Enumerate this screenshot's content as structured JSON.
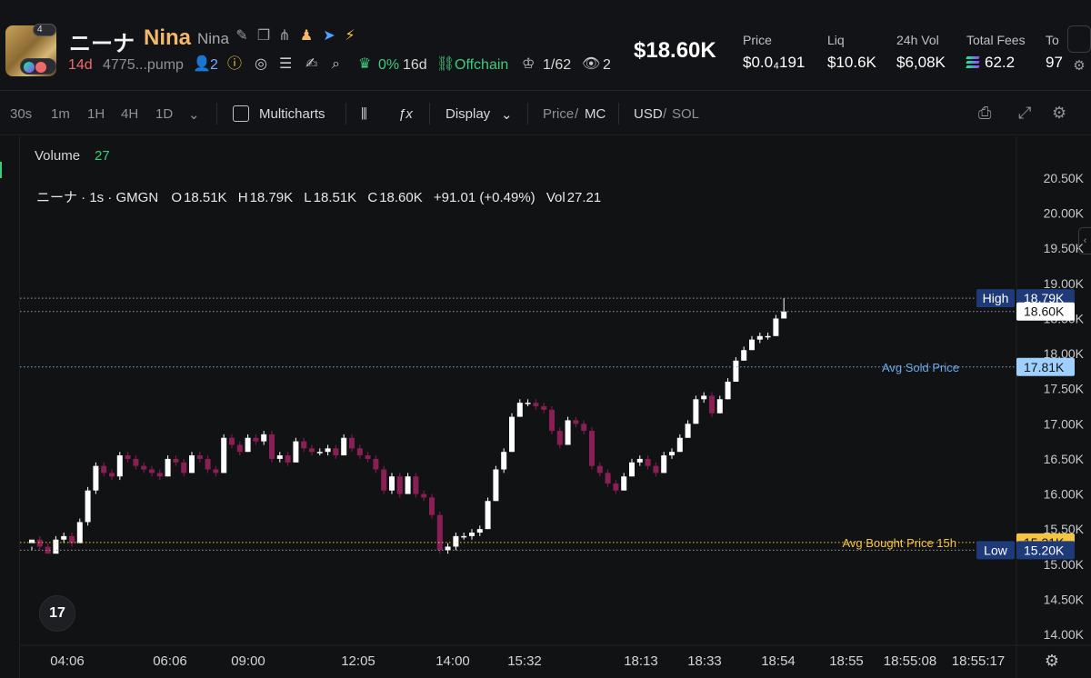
{
  "header": {
    "avatar_badge": "4",
    "token_cjk": "ニーナ",
    "token_name": "Nina",
    "token_sub": "Nina",
    "age": "14d",
    "address": "4775...pump",
    "holders_count": "2",
    "top10_pct": "0%",
    "top10_age": "16d",
    "offchain": "Offchain",
    "kol_ratio": "1/62",
    "viewers": "2",
    "market_cap": "$18.60K",
    "stats": [
      {
        "label": "Price",
        "value": "$0.0₄191"
      },
      {
        "label": "Liq",
        "value": "$10.6K"
      },
      {
        "label": "24h Vol",
        "value": "$6,08K"
      },
      {
        "label": "Total Fees",
        "value": "62.2"
      },
      {
        "label": "To",
        "value": "97"
      }
    ]
  },
  "toolbar": {
    "intervals": [
      "30s",
      "1m",
      "1H",
      "4H",
      "1D"
    ],
    "multicharts": "Multicharts",
    "display": "Display",
    "price": "Price",
    "slash1": "/",
    "mc": "MC",
    "usd": "USD",
    "slash2": "/",
    "sol": "SOL"
  },
  "chart": {
    "volume_label": "Volume",
    "volume_value": "27",
    "legend": {
      "symbol": "ニーナ · 1s · GMGN",
      "o_label": "O",
      "o": "18.51K",
      "h_label": "H",
      "h": "18.79K",
      "l_label": "L",
      "l": "18.51K",
      "c_label": "C",
      "c": "18.60K",
      "change": "+91.01 (+0.49%)",
      "vol_label": "Vol",
      "vol": "27.21"
    },
    "tv_logo": "17"
  },
  "chart_data": {
    "type": "candlestick",
    "ylim": [
      14000,
      20500
    ],
    "y_ticks": [
      "20.50K",
      "20.00K",
      "19.50K",
      "19.00K",
      "18.50K",
      "18.00K",
      "17.50K",
      "17.00K",
      "16.50K",
      "16.00K",
      "15.50K",
      "15.00K",
      "14.50K",
      "14.00K"
    ],
    "y_tick_values": [
      20500,
      20000,
      19500,
      19000,
      18500,
      18000,
      17500,
      17000,
      16500,
      16000,
      15500,
      15000,
      14500,
      14000
    ],
    "x_ticks": [
      "04:06",
      "06:06",
      "09:00",
      "12:05",
      "14:00",
      "15:32",
      "18:13",
      "18:33",
      "18:54",
      "18:55",
      "18:55:08",
      "18:55:17"
    ],
    "lines": [
      {
        "label": "High",
        "value": 18790,
        "tag": "18.79K",
        "color": "#1e3a78"
      },
      {
        "label": "",
        "value": 18600,
        "tag": "18.60K",
        "color": "#ffffff"
      },
      {
        "label": "Avg Sold Price",
        "value": 17810,
        "tag": "17.81K",
        "color": "#9fd0ff"
      },
      {
        "label": "Avg Bought Price 15h",
        "value": 15310,
        "tag": "15.31K",
        "color": "#f5c542"
      },
      {
        "label": "Low",
        "value": 15200,
        "tag": "15.20K",
        "color": "#1e3a78"
      }
    ],
    "candles": [
      [
        15300,
        15350,
        15250,
        15200
      ],
      [
        15350,
        15250,
        15400,
        15200
      ],
      [
        15250,
        15150,
        15300,
        15150
      ],
      [
        15150,
        15350,
        15400,
        15150
      ],
      [
        15350,
        15400,
        15450,
        15300
      ],
      [
        15400,
        15300,
        15450,
        15250
      ],
      [
        15300,
        15600,
        15650,
        15300
      ],
      [
        15600,
        16050,
        16100,
        15550
      ],
      [
        16050,
        16400,
        16450,
        16000
      ],
      [
        16400,
        16300,
        16450,
        16250
      ],
      [
        16300,
        16250,
        16350,
        16200
      ],
      [
        16250,
        16550,
        16600,
        16200
      ],
      [
        16550,
        16500,
        16600,
        16450
      ],
      [
        16500,
        16400,
        16550,
        16350
      ],
      [
        16400,
        16350,
        16450,
        16300
      ],
      [
        16350,
        16300,
        16400,
        16250
      ],
      [
        16300,
        16250,
        16350,
        16200
      ],
      [
        16250,
        16500,
        16550,
        16250
      ],
      [
        16500,
        16450,
        16550,
        16400
      ],
      [
        16450,
        16300,
        16500,
        16250
      ],
      [
        16300,
        16550,
        16600,
        16300
      ],
      [
        16550,
        16500,
        16600,
        16450
      ],
      [
        16500,
        16350,
        16550,
        16300
      ],
      [
        16350,
        16300,
        16400,
        16250
      ],
      [
        16300,
        16800,
        16850,
        16300
      ],
      [
        16800,
        16700,
        16850,
        16650
      ],
      [
        16700,
        16600,
        16750,
        16550
      ],
      [
        16600,
        16800,
        16850,
        16600
      ],
      [
        16800,
        16750,
        16850,
        16700
      ],
      [
        16750,
        16850,
        16900,
        16700
      ],
      [
        16850,
        16500,
        16900,
        16450
      ],
      [
        16500,
        16550,
        16600,
        16450
      ],
      [
        16550,
        16450,
        16600,
        16400
      ],
      [
        16450,
        16750,
        16800,
        16450
      ],
      [
        16750,
        16650,
        16800,
        16600
      ],
      [
        16650,
        16600,
        16700,
        16550
      ],
      [
        16600,
        16600,
        16650,
        16550
      ],
      [
        16600,
        16650,
        16700,
        16550
      ],
      [
        16650,
        16550,
        16700,
        16500
      ],
      [
        16550,
        16800,
        16850,
        16550
      ],
      [
        16800,
        16650,
        16850,
        16600
      ],
      [
        16650,
        16550,
        16700,
        16500
      ],
      [
        16550,
        16500,
        16600,
        16450
      ],
      [
        16500,
        16350,
        16550,
        16300
      ],
      [
        16350,
        16050,
        16400,
        16000
      ],
      [
        16050,
        16250,
        16300,
        16000
      ],
      [
        16250,
        16000,
        16300,
        15950
      ],
      [
        16000,
        16250,
        16300,
        16000
      ],
      [
        16250,
        16000,
        16300,
        15950
      ],
      [
        16000,
        15950,
        16050,
        15900
      ],
      [
        15950,
        15700,
        16000,
        15650
      ],
      [
        15700,
        15200,
        15750,
        15150
      ],
      [
        15200,
        15250,
        15300,
        15150
      ],
      [
        15250,
        15400,
        15450,
        15200
      ],
      [
        15400,
        15400,
        15450,
        15350
      ],
      [
        15400,
        15450,
        15500,
        15350
      ],
      [
        15450,
        15500,
        15550,
        15400
      ],
      [
        15500,
        15900,
        15950,
        15500
      ],
      [
        15900,
        16350,
        16400,
        15900
      ],
      [
        16350,
        16600,
        16650,
        16300
      ],
      [
        16600,
        17100,
        17150,
        16600
      ],
      [
        17100,
        17300,
        17350,
        17100
      ],
      [
        17300,
        17300,
        17350,
        17250
      ],
      [
        17300,
        17250,
        17350,
        17200
      ],
      [
        17250,
        17200,
        17300,
        17150
      ],
      [
        17200,
        16900,
        17250,
        16850
      ],
      [
        16900,
        16700,
        16950,
        16650
      ],
      [
        16700,
        17050,
        17100,
        16700
      ],
      [
        17050,
        17000,
        17100,
        16950
      ],
      [
        17000,
        16900,
        17050,
        16850
      ],
      [
        16900,
        16400,
        16950,
        16350
      ],
      [
        16400,
        16300,
        16450,
        16250
      ],
      [
        16300,
        16150,
        16350,
        16100
      ],
      [
        16150,
        16050,
        16200,
        16000
      ],
      [
        16050,
        16250,
        16300,
        16050
      ],
      [
        16250,
        16450,
        16500,
        16250
      ],
      [
        16450,
        16500,
        16550,
        16400
      ],
      [
        16500,
        16400,
        16550,
        16350
      ],
      [
        16400,
        16300,
        16450,
        16250
      ],
      [
        16300,
        16550,
        16600,
        16300
      ],
      [
        16550,
        16600,
        16650,
        16500
      ],
      [
        16600,
        16800,
        16850,
        16600
      ],
      [
        16800,
        17000,
        17050,
        16800
      ],
      [
        17000,
        17350,
        17400,
        17000
      ],
      [
        17350,
        17400,
        17450,
        17300
      ],
      [
        17400,
        17150,
        17450,
        17100
      ],
      [
        17150,
        17350,
        17400,
        17150
      ],
      [
        17350,
        17600,
        17650,
        17350
      ],
      [
        17600,
        17900,
        17950,
        17600
      ],
      [
        17900,
        18050,
        18100,
        17900
      ],
      [
        18050,
        18200,
        18250,
        18050
      ],
      [
        18200,
        18250,
        18300,
        18150
      ],
      [
        18250,
        18250,
        18300,
        18200
      ],
      [
        18250,
        18500,
        18550,
        18250
      ],
      [
        18500,
        18600,
        18790,
        18500
      ]
    ]
  }
}
